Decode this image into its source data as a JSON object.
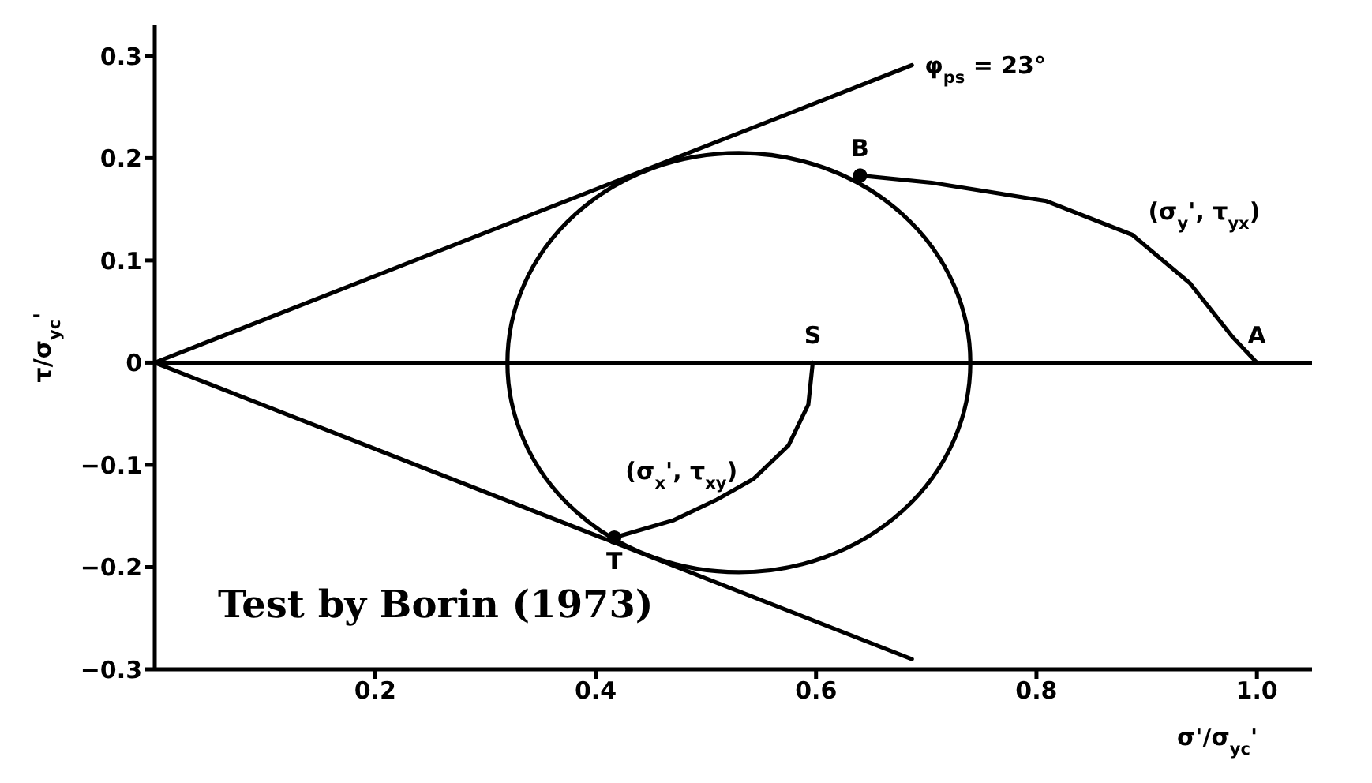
{
  "chart_data": {
    "type": "line",
    "xlabel": "σ'/σ$_{yc}$'",
    "ylabel": "τ/σ$_{yc}$'",
    "xlim": [
      0,
      1.05
    ],
    "ylim": [
      -0.3,
      0.33
    ],
    "xticks": [
      0.2,
      0.4,
      0.6,
      0.8,
      {
        "value": 1,
        "label": "1.0"
      }
    ],
    "yticks": [
      {
        "value": -0.3,
        "label": "−0.3"
      },
      {
        "value": -0.2,
        "label": "−0.2"
      },
      {
        "value": -0.1,
        "label": "−0.1"
      },
      0,
      0.1,
      0.2,
      0.3
    ],
    "marker": "none",
    "line_style": "solid",
    "ref_lines": [
      {
        "axis": "y",
        "value": 0,
        "color": "#000000"
      }
    ],
    "series": [
      {
        "color": "#000000",
        "x": [
          0,
          0.687
        ],
        "values": [
          0,
          0.291
        ]
      },
      {
        "color": "#000000",
        "x": [
          0,
          0.687
        ],
        "values": [
          0,
          -0.29
        ]
      },
      {
        "name": "(σ$_{y}$', τ$_{yx}$)",
        "color": "#000000",
        "x": [
          0.64,
          0.705,
          0.809,
          0.887,
          0.939,
          0.978,
          1.0
        ],
        "values": [
          0.183,
          0.176,
          0.158,
          0.125,
          0.078,
          0.025,
          0
        ]
      },
      {
        "name": "(σ$_{x}$', τ$_{xy}$)",
        "color": "#000000",
        "x": [
          0.417,
          0.471,
          0.51,
          0.543,
          0.575,
          0.593,
          0.597
        ],
        "values": [
          -0.171,
          -0.154,
          -0.134,
          -0.114,
          -0.081,
          -0.041,
          0
        ]
      },
      {
        "type": "scatter",
        "marker": "circle",
        "color": "#000000",
        "x": [
          0.64,
          0.417
        ],
        "values": [
          0.183,
          -0.171
        ]
      }
    ],
    "annotations": [
      {
        "text": "φ$_{ps}$ = 23°",
        "x": 0.687,
        "y": 0.291
      },
      {
        "text": "B",
        "x": 0.64,
        "y": 0.183
      },
      {
        "text": "A",
        "x": 1.0,
        "y": 0
      },
      {
        "text": "S",
        "x": 0.597,
        "y": 0
      },
      {
        "text": "T",
        "x": 0.417,
        "y": -0.171
      },
      "Test by Borin (1973)"
    ]
  }
}
